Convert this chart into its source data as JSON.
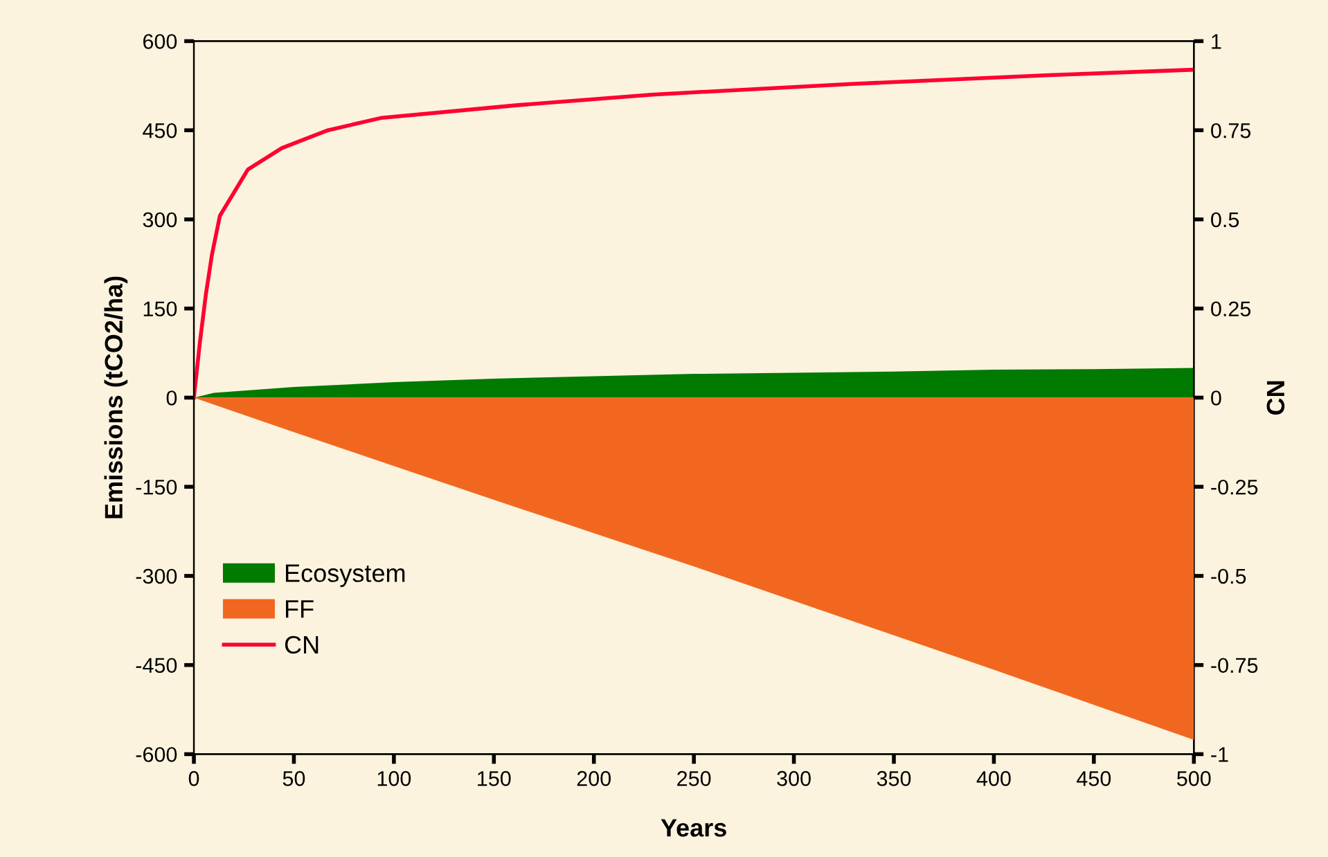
{
  "chart_data": {
    "type": "area",
    "xlabel": "Years",
    "ylabel": "Emissions (tCO2/ha)",
    "y2label": "CN",
    "xlim": [
      0,
      500
    ],
    "xticks": [
      0,
      50,
      100,
      150,
      200,
      250,
      300,
      350,
      400,
      450,
      500
    ],
    "ylim": [
      -600,
      600
    ],
    "yticks": [
      -600,
      -450,
      -300,
      -150,
      0,
      150,
      300,
      450,
      600
    ],
    "y2lim": [
      -1,
      1
    ],
    "y2ticks": [
      -1,
      -0.75,
      -0.5,
      -0.25,
      0,
      0.25,
      0.5,
      0.75,
      1
    ],
    "legend": "bottom left",
    "grid": false,
    "series": [
      {
        "name": "Ecosystem",
        "color": "#007a00",
        "x": [
          0,
          10,
          50,
          100,
          150,
          200,
          250,
          300,
          350,
          400,
          450,
          500
        ],
        "values": [
          0,
          8,
          18,
          26,
          32,
          36,
          40,
          42,
          44,
          47,
          48,
          50
        ]
      },
      {
        "name": "FF",
        "color": "#f2671f",
        "x": [
          0,
          50,
          100,
          150,
          200,
          250,
          300,
          350,
          400,
          450,
          500
        ],
        "values": [
          0,
          -58,
          -115,
          -172,
          -228,
          -284,
          -342,
          -400,
          -458,
          -517,
          -576
        ]
      },
      {
        "name": "CN",
        "type": "line",
        "axis": "y2",
        "color": "#ff0030",
        "x": [
          0,
          3,
          6,
          9,
          13,
          27,
          44,
          67,
          94,
          161,
          229,
          329,
          430,
          500
        ],
        "values": [
          0,
          0.155,
          0.29,
          0.4,
          0.51,
          0.64,
          0.7,
          0.75,
          0.785,
          0.82,
          0.85,
          0.88,
          0.905,
          0.92
        ]
      }
    ]
  }
}
